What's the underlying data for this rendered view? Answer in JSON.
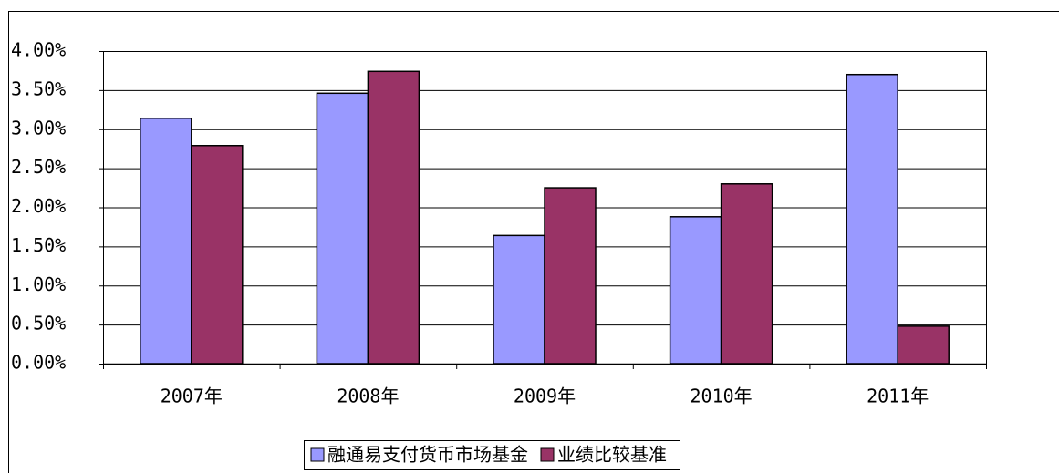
{
  "chart_data": {
    "type": "bar",
    "categories": [
      "2007年",
      "2008年",
      "2009年",
      "2010年",
      "2011年"
    ],
    "series": [
      {
        "name": "融通易支付货币市场基金",
        "color": "#9999ff",
        "values": [
          3.14,
          3.46,
          1.64,
          1.88,
          3.7
        ]
      },
      {
        "name": "业绩比较基准",
        "color": "#993366",
        "values": [
          2.79,
          3.74,
          2.25,
          2.3,
          0.48
        ]
      }
    ],
    "ylim": [
      0,
      4
    ],
    "yticks": [
      {
        "value": 0,
        "label": "0.00%"
      },
      {
        "value": 0.5,
        "label": "0.50%"
      },
      {
        "value": 1,
        "label": "1.00%"
      },
      {
        "value": 1.5,
        "label": "1.50%"
      },
      {
        "value": 2,
        "label": "2.00%"
      },
      {
        "value": 2.5,
        "label": "2.50%"
      },
      {
        "value": 3,
        "label": "3.00%"
      },
      {
        "value": 3.5,
        "label": "3.50%"
      },
      {
        "value": 4,
        "label": "4.00%"
      }
    ],
    "grid": true,
    "legend": "bottom"
  }
}
